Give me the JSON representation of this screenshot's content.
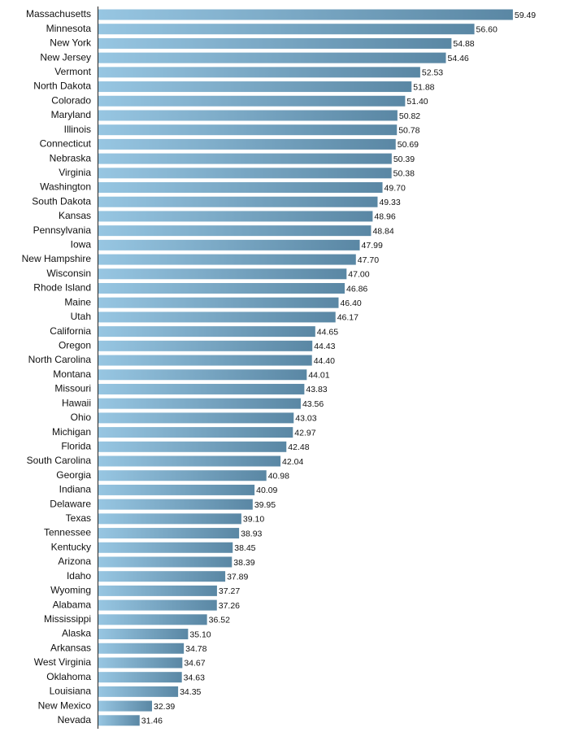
{
  "chart_data": {
    "type": "barh",
    "categories": [
      "Massachusetts",
      "Minnesota",
      "New York",
      "New Jersey",
      "Vermont",
      "North Dakota",
      "Colorado",
      "Maryland",
      "Illinois",
      "Connecticut",
      "Nebraska",
      "Virginia",
      "Washington",
      "South Dakota",
      "Kansas",
      "Pennsylvania",
      "Iowa",
      "New Hampshire",
      "Wisconsin",
      "Rhode Island",
      "Maine",
      "Utah",
      "California",
      "Oregon",
      "North Carolina",
      "Montana",
      "Missouri",
      "Hawaii",
      "Ohio",
      "Michigan",
      "Florida",
      "South Carolina",
      "Georgia",
      "Indiana",
      "Delaware",
      "Texas",
      "Tennessee",
      "Kentucky",
      "Arizona",
      "Idaho",
      "Wyoming",
      "Alabama",
      "Mississippi",
      "Alaska",
      "Arkansas",
      "West Virginia",
      "Oklahoma",
      "Louisiana",
      "New Mexico",
      "Nevada"
    ],
    "values": [
      59.49,
      56.6,
      54.88,
      54.46,
      52.53,
      51.88,
      51.4,
      50.82,
      50.78,
      50.69,
      50.39,
      50.38,
      49.7,
      49.33,
      48.96,
      48.84,
      47.99,
      47.7,
      47.0,
      46.86,
      46.4,
      46.17,
      44.65,
      44.43,
      44.4,
      44.01,
      43.83,
      43.56,
      43.03,
      42.97,
      42.48,
      42.04,
      40.98,
      40.09,
      39.95,
      39.1,
      38.93,
      38.45,
      38.39,
      37.89,
      37.27,
      37.26,
      36.52,
      35.1,
      34.78,
      34.67,
      34.63,
      34.35,
      32.39,
      31.46
    ],
    "value_labels": [
      "59.49",
      "56.60",
      "54.88",
      "54.46",
      "52.53",
      "51.88",
      "51.40",
      "50.82",
      "50.78",
      "50.69",
      "50.39",
      "50.38",
      "49.70",
      "49.33",
      "48.96",
      "48.84",
      "47.99",
      "47.70",
      "47.00",
      "46.86",
      "46.40",
      "46.17",
      "44.65",
      "44.43",
      "44.40",
      "44.01",
      "43.83",
      "43.56",
      "43.03",
      "42.97",
      "42.48",
      "42.04",
      "40.98",
      "40.09",
      "39.95",
      "39.10",
      "38.93",
      "38.45",
      "38.39",
      "37.89",
      "37.27",
      "37.26",
      "36.52",
      "35.10",
      "34.78",
      "34.67",
      "34.63",
      "34.35",
      "32.39",
      "31.46"
    ],
    "xlim": [
      28.3,
      62
    ],
    "gradient": [
      "#97c6e2",
      "#5a87a4"
    ]
  }
}
